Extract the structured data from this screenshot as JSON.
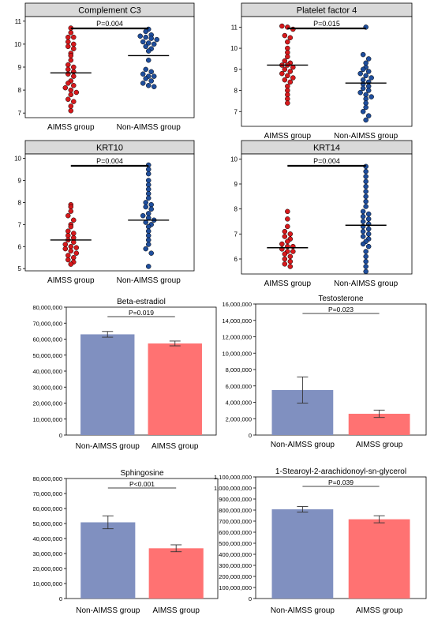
{
  "colors": {
    "aimss_dot": "#d7191c",
    "non_aimss_dot": "#1f4e9c",
    "non_aimss_bar": "#8090c0",
    "aimss_bar": "#ff7272",
    "panel_header": "#d9d9d9"
  },
  "chart_data": [
    {
      "type": "scatter",
      "title": "Complement C3",
      "p_label": "P=0.004",
      "categories": [
        "AIMSS group",
        "Non-AIMSS group"
      ],
      "ylim": [
        6.8,
        11.2
      ],
      "yticks": [
        7,
        8,
        9,
        10,
        11
      ],
      "series": [
        {
          "name": "AIMSS group",
          "mean": 8.75,
          "values": [
            10.7,
            10.5,
            10.3,
            10.3,
            10.1,
            10.0,
            9.9,
            9.8,
            9.6,
            9.5,
            9.3,
            9.1,
            9.0,
            8.9,
            8.8,
            8.7,
            8.6,
            8.4,
            8.3,
            8.2,
            8.1,
            8.0,
            7.9,
            7.8,
            7.6,
            7.5,
            7.3,
            7.1
          ]
        },
        {
          "name": "Non-AIMSS group",
          "mean": 9.5,
          "values": [
            10.65,
            10.55,
            10.4,
            10.35,
            10.3,
            10.25,
            10.2,
            10.1,
            10.05,
            10.0,
            9.9,
            9.8,
            9.7,
            9.3,
            8.9,
            8.8,
            8.7,
            8.6,
            8.6,
            8.5,
            8.4,
            8.3,
            8.2,
            8.15
          ]
        }
      ]
    },
    {
      "type": "scatter",
      "title": "Platelet factor 4",
      "p_label": "P=0.015",
      "categories": [
        "AIMSS group",
        "Non-AIMSS group"
      ],
      "ylim": [
        6.3,
        11.5
      ],
      "yticks": [
        7,
        8,
        9,
        10,
        11
      ],
      "series": [
        {
          "name": "AIMSS group",
          "mean": 9.2,
          "values": [
            11.05,
            11.0,
            10.9,
            10.6,
            10.5,
            10.3,
            10.0,
            9.8,
            9.6,
            9.4,
            9.3,
            9.2,
            9.2,
            9.1,
            9.0,
            8.9,
            8.8,
            8.7,
            8.6,
            8.5,
            8.4,
            8.2,
            8.0,
            7.8,
            7.6,
            7.4
          ]
        },
        {
          "name": "Non-AIMSS group",
          "mean": 8.35,
          "values": [
            11.0,
            9.7,
            9.5,
            9.3,
            9.1,
            9.0,
            8.9,
            8.8,
            8.7,
            8.6,
            8.5,
            8.4,
            8.3,
            8.2,
            8.1,
            8.0,
            7.9,
            7.8,
            7.7,
            7.6,
            7.4,
            7.2,
            7.0,
            6.8,
            6.6
          ]
        }
      ]
    },
    {
      "type": "scatter",
      "title": "KRT10",
      "p_label": "P=0.004",
      "categories": [
        "AIMSS group",
        "Non-AIMSS group"
      ],
      "ylim": [
        4.9,
        10.2
      ],
      "yticks": [
        5,
        6,
        7,
        8,
        9,
        10
      ],
      "series": [
        {
          "name": "AIMSS group",
          "mean": 6.3,
          "values": [
            7.9,
            7.8,
            7.6,
            7.4,
            7.2,
            7.0,
            6.9,
            6.7,
            6.6,
            6.5,
            6.4,
            6.3,
            6.2,
            6.1,
            6.0,
            5.95,
            5.9,
            5.8,
            5.7,
            5.6,
            5.5,
            5.4,
            5.3,
            5.2
          ]
        },
        {
          "name": "Non-AIMSS group",
          "mean": 7.2,
          "values": [
            9.7,
            9.5,
            9.3,
            9.0,
            8.8,
            8.6,
            8.4,
            8.2,
            8.0,
            7.9,
            7.8,
            7.7,
            7.5,
            7.4,
            7.3,
            7.2,
            7.1,
            7.0,
            6.9,
            6.7,
            6.5,
            6.3,
            6.1,
            5.9,
            5.7,
            5.1
          ]
        }
      ]
    },
    {
      "type": "scatter",
      "title": "KRT14",
      "p_label": "P=0.004",
      "categories": [
        "AIMSS group",
        "Non-AIMSS group"
      ],
      "ylim": [
        5.4,
        10.2
      ],
      "yticks": [
        6,
        7,
        8,
        9,
        10
      ],
      "series": [
        {
          "name": "AIMSS group",
          "mean": 6.45,
          "values": [
            7.9,
            7.6,
            7.3,
            7.1,
            7.0,
            6.9,
            6.8,
            6.7,
            6.6,
            6.5,
            6.5,
            6.4,
            6.3,
            6.3,
            6.2,
            6.1,
            6.0,
            5.9,
            5.8,
            5.7
          ]
        },
        {
          "name": "Non-AIMSS group",
          "mean": 7.35,
          "values": [
            9.7,
            9.5,
            9.3,
            9.1,
            8.9,
            8.7,
            8.5,
            8.3,
            8.1,
            7.9,
            7.8,
            7.7,
            7.6,
            7.5,
            7.4,
            7.3,
            7.2,
            7.1,
            7.0,
            6.9,
            6.8,
            6.7,
            6.6,
            6.5,
            6.3,
            6.1,
            5.9,
            5.7,
            5.5
          ]
        }
      ]
    },
    {
      "type": "bar",
      "title": "Beta-estradiol",
      "p_label": "P=0.019",
      "categories": [
        "Non-AIMSS group",
        "AIMSS group"
      ],
      "values": [
        63000000,
        57300000
      ],
      "error": [
        1800000,
        1500000
      ],
      "ylim": [
        0,
        80000000
      ],
      "yticks": [
        "0",
        "10,000,000",
        "20,000,000",
        "30,000,000",
        "40,000,000",
        "50,000,000",
        "60,000,000",
        "70,000,000",
        "80,000,000"
      ]
    },
    {
      "type": "bar",
      "title": "Testosterone",
      "p_label": "P=0.023",
      "categories": [
        "Non-AIMSS group",
        "AIMSS group"
      ],
      "values": [
        5500000,
        2600000
      ],
      "error": [
        1600000,
        450000
      ],
      "ylim": [
        0,
        16000000
      ],
      "yticks": [
        "0",
        "2,000,000",
        "4,000,000",
        "6,000,000",
        "8,000,000",
        "10,000,000",
        "12,000,000",
        "14,000,000",
        "16,000,000"
      ]
    },
    {
      "type": "bar",
      "title": "Sphingosine",
      "p_label": "P<0.001",
      "categories": [
        "Non-AIMSS group",
        "AIMSS group"
      ],
      "values": [
        50800000,
        33500000
      ],
      "error": [
        4300000,
        2300000
      ],
      "ylim": [
        0,
        80000000
      ],
      "yticks": [
        "0",
        "10,000,000",
        "20,000,000",
        "30,000,000",
        "40,000,000",
        "50,000,000",
        "60,000,000",
        "70,000,000",
        "80,000,000"
      ]
    },
    {
      "type": "bar",
      "title": "1-Stearoyl-2-arachidonoyl-sn-glycerol",
      "p_label": "P=0.039",
      "categories": [
        "Non-AIMSS group",
        "AIMSS group"
      ],
      "values": [
        807000000,
        717000000
      ],
      "error": [
        25000000,
        32000000
      ],
      "ylim": [
        0,
        1100000000
      ],
      "yticks": [
        "0",
        "100,000,000",
        "200,000,000",
        "300,000,000",
        "400,000,000",
        "500,000,000",
        "600,000,000",
        "700,000,000",
        "800,000,000",
        "900,000,000",
        "1,000,000,000",
        "1,100,000,000"
      ]
    }
  ]
}
